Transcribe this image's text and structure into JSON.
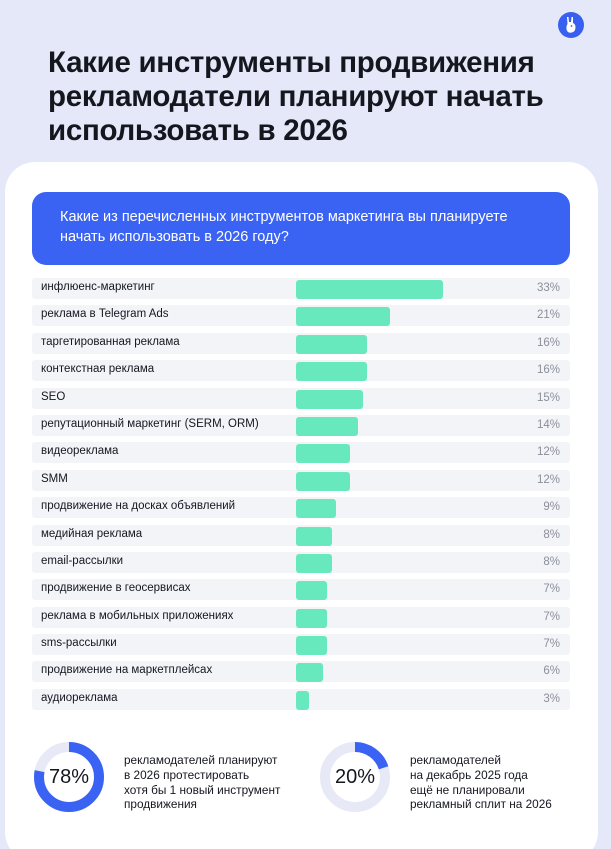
{
  "title": "Какие инструменты продвижения рекламодатели планируют начать использовать в 2026",
  "question": "Какие из перечисленных инструментов маркетинга вы планируете начать использовать в 2026 году?",
  "colors": {
    "accent": "#3a63f3",
    "bar": "#68e8bd",
    "background": "#e4e8f8"
  },
  "chart_data": {
    "type": "bar",
    "orientation": "horizontal",
    "title": "",
    "xlabel": "",
    "ylabel": "",
    "xlim": [
      0,
      100
    ],
    "categories": [
      "инфлюенс-маркетинг",
      "реклама в Telegram Ads",
      "таргетированная реклама",
      "контекстная реклама",
      "SEO",
      "репутационный маркетинг (SERM, ORM)",
      "видеореклама",
      "SMM",
      "продвижение на досках объявлений",
      "медийная реклама",
      "email-рассылки",
      "продвижение в геосервисах",
      "реклама в мобильных приложениях",
      "sms-рассылки",
      "продвижение на маркетплейсах",
      "аудиореклама"
    ],
    "values": [
      33,
      21,
      16,
      16,
      15,
      14,
      12,
      12,
      9,
      8,
      8,
      7,
      7,
      7,
      6,
      3
    ],
    "value_labels": [
      "33%",
      "21%",
      "16%",
      "16%",
      "15%",
      "14%",
      "12%",
      "12%",
      "9%",
      "8%",
      "8%",
      "7%",
      "7%",
      "7%",
      "6%",
      "3%"
    ]
  },
  "stats": [
    {
      "value": 78,
      "label": "78%",
      "text": [
        "рекламодателей планируют",
        "в 2026 протестировать",
        "хотя бы 1 новый инструмент",
        "продвижения"
      ]
    },
    {
      "value": 20,
      "label": "20%",
      "text": [
        "рекламодателей",
        "на декабрь 2025 года",
        "ещё не планировали",
        "рекламный сплит на 2026"
      ]
    }
  ]
}
